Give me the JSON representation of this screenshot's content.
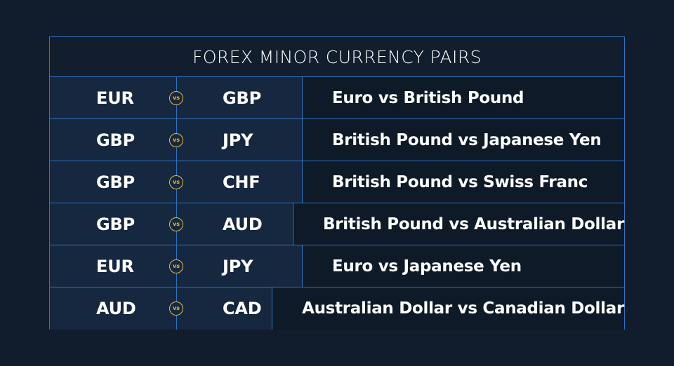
{
  "title": "FOREX MINOR CURRENCY PAIRS",
  "vs_label": "vs",
  "colors": {
    "background": "#111d2c",
    "border": "#2f74c0",
    "pair_cell": "#15283f",
    "desc_cell": "#0f1a28",
    "vs_badge": "#e7b93c",
    "text": "#ffffff"
  },
  "pairs": [
    {
      "base": "EUR",
      "quote": "GBP",
      "description": "Euro vs British Pound"
    },
    {
      "base": "GBP",
      "quote": "JPY",
      "description": "British Pound vs Japanese Yen"
    },
    {
      "base": "GBP",
      "quote": "CHF",
      "description": "British Pound vs Swiss Franc"
    },
    {
      "base": "GBP",
      "quote": "AUD",
      "description": "British Pound vs Australian Dollar"
    },
    {
      "base": "EUR",
      "quote": "JPY",
      "description": "Euro vs Japanese Yen"
    },
    {
      "base": "AUD",
      "quote": "CAD",
      "description": "Australian Dollar vs Canadian Dollar"
    }
  ]
}
